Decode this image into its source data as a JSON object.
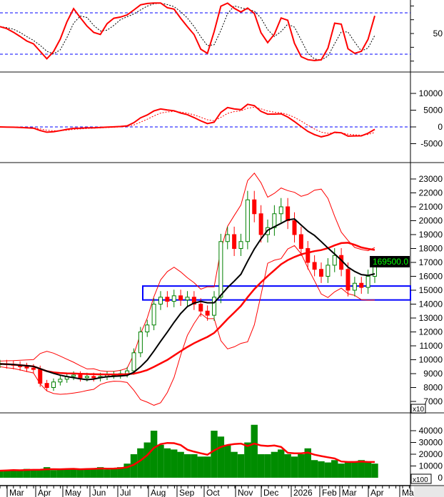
{
  "chart_data": [
    {
      "panel": "stochastic",
      "type": "line",
      "ylim": [
        0,
        100
      ],
      "ticks": [
        "50"
      ],
      "reference_lines": [
        80,
        20
      ],
      "colors": {
        "k": "#ff0000",
        "d": "#000000",
        "ref": "#0000ff"
      }
    },
    {
      "panel": "macd",
      "type": "line",
      "ylim": [
        -10000,
        15000
      ],
      "ticks": [
        "10000",
        "5000",
        "0",
        "-5000"
      ],
      "reference_lines": [
        0
      ],
      "colors": {
        "macd": "#ff0000",
        "signal": "#ff0000",
        "ref": "#0000ff"
      }
    },
    {
      "panel": "price",
      "type": "candlestick",
      "ylim": [
        6500,
        24000
      ],
      "ticks": [
        "23000",
        "22000",
        "21000",
        "20000",
        "19000",
        "18000",
        "17000",
        "16000",
        "15000",
        "14000",
        "13000",
        "12000",
        "11000",
        "10000",
        "9000",
        "8000",
        "7000"
      ],
      "last_price_label": "169500.0",
      "multiplier_label": "x10",
      "support_zone": [
        14300,
        15300
      ],
      "colors": {
        "up": "#008000",
        "down": "#ff0000",
        "ma_short": "#000000",
        "ma_long": "#ff0000",
        "bands": "#ff0000",
        "zone": "#0000ff",
        "label_bg": "#000000",
        "label_text": "#00ff00"
      },
      "closes": [
        9700,
        9650,
        9600,
        9500,
        9400,
        9300,
        8300,
        8000,
        8400,
        8600,
        8800,
        8900,
        8700,
        8800,
        8700,
        8800,
        8900,
        8900,
        9000,
        9200,
        10500,
        12000,
        12500,
        14000,
        14500,
        14200,
        14600,
        14300,
        14500,
        14000,
        13500,
        13200,
        14500,
        18500,
        19000,
        18000,
        18500,
        21500,
        20500,
        19000,
        19500,
        20500,
        21000,
        20000,
        19000,
        18000,
        17000,
        16500,
        16000,
        16800,
        17500,
        16500,
        15000,
        15500,
        15200,
        16000,
        16950
      ]
    },
    {
      "panel": "volume",
      "type": "bar",
      "ylim": [
        0,
        50000
      ],
      "ticks": [
        "40000",
        "30000",
        "20000",
        "10000",
        "0"
      ],
      "multiplier_label": "x100",
      "colors": {
        "bar": "#008c00",
        "ma": "#ff0000"
      },
      "values": [
        6000,
        6500,
        7000,
        6000,
        7500,
        6500,
        7000,
        9000,
        6500,
        7000,
        7500,
        8000,
        7000,
        7500,
        8000,
        9000,
        7000,
        7500,
        9000,
        12000,
        20000,
        25000,
        30000,
        40000,
        28000,
        25000,
        24000,
        22000,
        20000,
        20000,
        18000,
        18000,
        40000,
        35000,
        28000,
        22000,
        20000,
        30000,
        45000,
        20000,
        20000,
        22000,
        24000,
        20000,
        18000,
        20000,
        25000,
        15000,
        14000,
        13000,
        15000,
        12000,
        13000,
        14000,
        15000,
        13000,
        12000
      ]
    }
  ],
  "x_axis": {
    "labels": [
      "Mar",
      "Apr",
      "May",
      "Jun",
      "Jul",
      "Aug",
      "Sep",
      "Oct",
      "Nov",
      "Dec",
      "2026",
      "Feb",
      "Mar",
      "Apr",
      "Ma"
    ]
  }
}
